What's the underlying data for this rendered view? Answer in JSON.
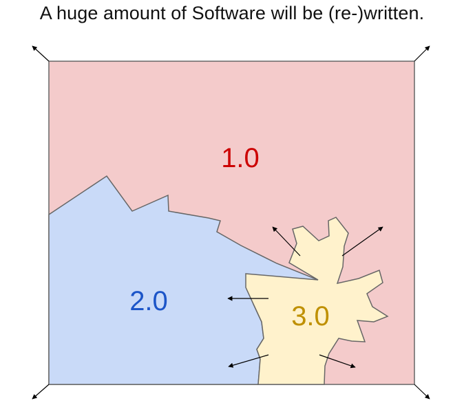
{
  "title": "A huge amount of Software will be (re-)written.",
  "regions": {
    "v1": {
      "label": "1.0",
      "fill": "#f4cbcb",
      "text_color": "#cc0000"
    },
    "v2": {
      "label": "2.0",
      "fill": "#c9daf8",
      "text_color": "#1c55c8"
    },
    "v3": {
      "label": "3.0",
      "fill": "#fff2cc",
      "text_color": "#bf9000"
    }
  },
  "outline_color": "#666666",
  "arrow_color": "#000000"
}
